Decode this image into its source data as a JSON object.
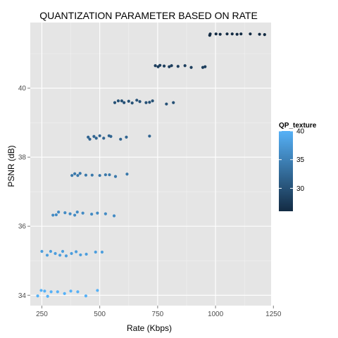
{
  "chart_data": {
    "type": "scatter",
    "title": "QUANTIZATION PARAMETER BASED ON RATE",
    "xlabel": "Rate (Kbps)",
    "ylabel": "PSNR (dB)",
    "xlim": [
      200,
      1240
    ],
    "ylim": [
      33.7,
      41.9
    ],
    "x_ticks": [
      250,
      500,
      750,
      1000,
      1250
    ],
    "y_ticks": [
      34,
      36,
      38,
      40
    ],
    "y_minor_ticks": [
      35,
      37,
      39,
      41
    ],
    "grid": true,
    "background": "#e5e5e5",
    "legend": {
      "title": "QP_texture",
      "position": "right",
      "type": "colorbar",
      "range": [
        26,
        40
      ],
      "ticks": [
        30,
        35,
        40
      ],
      "low_color": "#132b43",
      "high_color": "#56b1f7"
    },
    "series": [
      {
        "qp": 40,
        "points": [
          [
            232,
            33.98
          ],
          [
            247,
            34.14
          ],
          [
            262,
            34.12
          ],
          [
            275,
            33.97
          ],
          [
            290,
            34.1
          ],
          [
            318,
            34.1
          ],
          [
            348,
            34.05
          ],
          [
            375,
            34.12
          ],
          [
            405,
            34.1
          ],
          [
            440,
            33.98
          ],
          [
            490,
            34.14
          ]
        ]
      },
      {
        "qp": 38,
        "points": [
          [
            250,
            35.27
          ],
          [
            273,
            35.16
          ],
          [
            288,
            35.27
          ],
          [
            308,
            35.21
          ],
          [
            328,
            35.16
          ],
          [
            340,
            35.27
          ],
          [
            355,
            35.14
          ],
          [
            378,
            35.21
          ],
          [
            398,
            35.26
          ],
          [
            417,
            35.17
          ],
          [
            442,
            35.19
          ],
          [
            482,
            35.25
          ],
          [
            510,
            35.25
          ]
        ]
      },
      {
        "qp": 36,
        "points": [
          [
            298,
            36.32
          ],
          [
            312,
            36.33
          ],
          [
            322,
            36.41
          ],
          [
            350,
            36.39
          ],
          [
            372,
            36.36
          ],
          [
            392,
            36.32
          ],
          [
            403,
            36.41
          ],
          [
            427,
            36.38
          ],
          [
            465,
            36.35
          ],
          [
            490,
            36.38
          ],
          [
            525,
            36.36
          ],
          [
            562,
            36.3
          ]
        ]
      },
      {
        "qp": 34,
        "points": [
          [
            380,
            37.47
          ],
          [
            392,
            37.52
          ],
          [
            405,
            37.47
          ],
          [
            415,
            37.53
          ],
          [
            440,
            37.48
          ],
          [
            467,
            37.48
          ],
          [
            500,
            37.47
          ],
          [
            525,
            37.49
          ],
          [
            542,
            37.49
          ],
          [
            568,
            37.44
          ],
          [
            618,
            37.51
          ]
        ]
      },
      {
        "qp": 32,
        "points": [
          [
            450,
            38.58
          ],
          [
            457,
            38.52
          ],
          [
            475,
            38.6
          ],
          [
            485,
            38.55
          ],
          [
            500,
            38.62
          ],
          [
            517,
            38.55
          ],
          [
            540,
            38.62
          ],
          [
            548,
            38.6
          ],
          [
            590,
            38.52
          ],
          [
            615,
            38.58
          ],
          [
            715,
            38.61
          ]
        ]
      },
      {
        "qp": 30,
        "points": [
          [
            565,
            39.58
          ],
          [
            580,
            39.63
          ],
          [
            595,
            39.63
          ],
          [
            605,
            39.58
          ],
          [
            625,
            39.62
          ],
          [
            640,
            39.57
          ],
          [
            660,
            39.65
          ],
          [
            673,
            39.61
          ],
          [
            700,
            39.58
          ],
          [
            715,
            39.59
          ],
          [
            728,
            39.63
          ],
          [
            788,
            39.54
          ],
          [
            818,
            39.58
          ]
        ]
      },
      {
        "qp": 28,
        "points": [
          [
            740,
            40.65
          ],
          [
            752,
            40.62
          ],
          [
            760,
            40.66
          ],
          [
            778,
            40.64
          ],
          [
            800,
            40.62
          ],
          [
            810,
            40.65
          ],
          [
            838,
            40.63
          ],
          [
            868,
            40.65
          ],
          [
            895,
            40.6
          ],
          [
            945,
            40.6
          ],
          [
            955,
            40.62
          ]
        ]
      },
      {
        "qp": 26,
        "points": [
          [
            975,
            41.53
          ],
          [
            977,
            41.57
          ],
          [
            1002,
            41.57
          ],
          [
            1020,
            41.56
          ],
          [
            1050,
            41.57
          ],
          [
            1072,
            41.57
          ],
          [
            1093,
            41.56
          ],
          [
            1110,
            41.57
          ],
          [
            1150,
            41.57
          ],
          [
            1190,
            41.56
          ],
          [
            1212,
            41.55
          ]
        ]
      }
    ]
  }
}
